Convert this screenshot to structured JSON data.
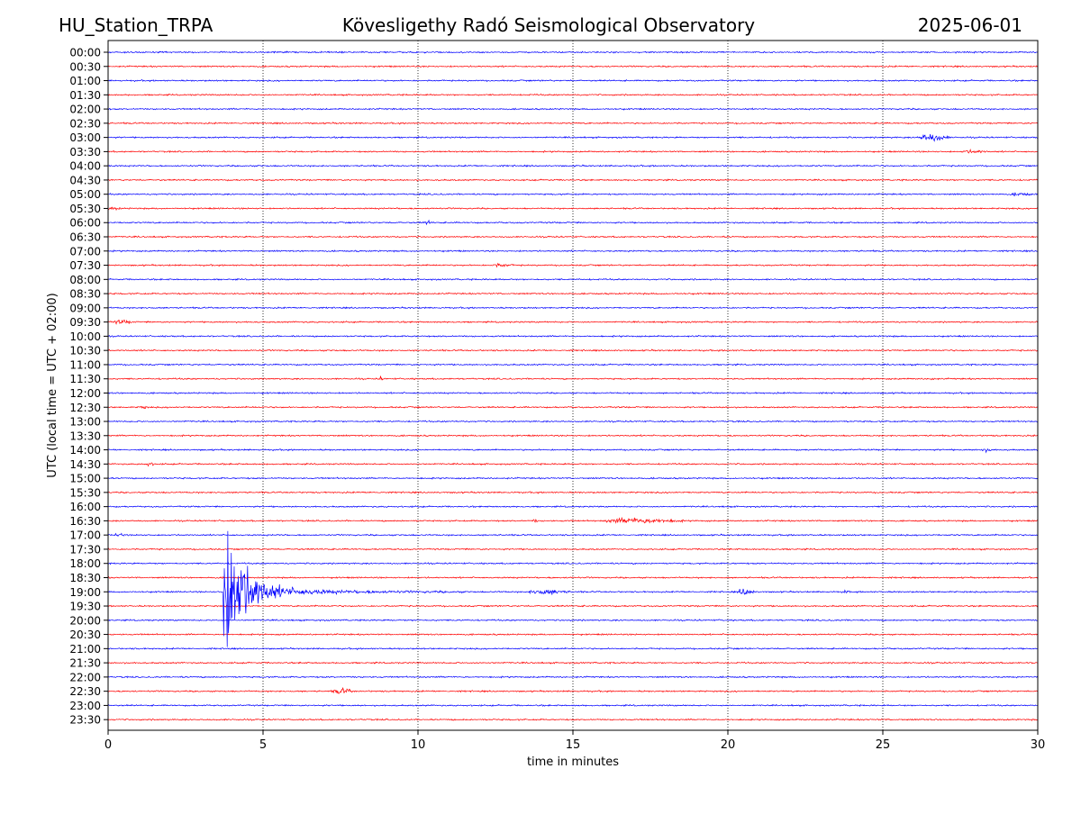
{
  "header": {
    "station": "HU_Station_TRPA",
    "observatory": "Kövesligethy Radó Seismological Observatory",
    "date": "2025-06-01"
  },
  "chart_data": {
    "type": "line",
    "title": "Kövesligethy Radó Seismological Observatory",
    "xlabel": "time in minutes",
    "ylabel": "UTC (local time = UTC + 02:00)",
    "xlim": [
      0,
      30
    ],
    "x_ticks": [
      0,
      5,
      10,
      15,
      20,
      25,
      30
    ],
    "x_tick_labels": [
      "0",
      "5",
      "10",
      "15",
      "20",
      "25",
      "30"
    ],
    "grid": "vertical dotted at x ticks",
    "trace_colors": [
      "#0000ff",
      "#ff0000"
    ],
    "rows": [
      "00:00",
      "00:30",
      "01:00",
      "01:30",
      "02:00",
      "02:30",
      "03:00",
      "03:30",
      "04:00",
      "04:30",
      "05:00",
      "05:30",
      "06:00",
      "06:30",
      "07:00",
      "07:30",
      "08:00",
      "08:30",
      "09:00",
      "09:30",
      "10:00",
      "10:30",
      "11:00",
      "11:30",
      "12:00",
      "12:30",
      "13:00",
      "13:30",
      "14:00",
      "14:30",
      "15:00",
      "15:30",
      "16:00",
      "16:30",
      "17:00",
      "17:30",
      "18:00",
      "18:30",
      "19:00",
      "19:30",
      "20:00",
      "20:30",
      "21:00",
      "21:30",
      "22:00",
      "22:30",
      "23:00",
      "23:30"
    ],
    "events": [
      {
        "row": "03:00",
        "start_min": 26.1,
        "end_min": 27.4,
        "peak": 9
      },
      {
        "row": "03:30",
        "start_min": 27.5,
        "end_min": 28.6,
        "peak": 3
      },
      {
        "row": "05:00",
        "start_min": 29.1,
        "end_min": 30.0,
        "peak": 3
      },
      {
        "row": "05:30",
        "start_min": 0.0,
        "end_min": 0.5,
        "peak": 3
      },
      {
        "row": "06:00",
        "start_min": 10.2,
        "end_min": 10.5,
        "peak": 4
      },
      {
        "row": "07:30",
        "start_min": 12.3,
        "end_min": 13.3,
        "peak": 3
      },
      {
        "row": "09:30",
        "start_min": 0.1,
        "end_min": 1.0,
        "peak": 4
      },
      {
        "row": "11:30",
        "start_min": 8.75,
        "end_min": 8.9,
        "peak": 5
      },
      {
        "row": "11:30",
        "start_min": 26.5,
        "end_min": 26.7,
        "peak": 5
      },
      {
        "row": "12:30",
        "start_min": 1.0,
        "end_min": 1.3,
        "peak": 4
      },
      {
        "row": "14:00",
        "start_min": 28.1,
        "end_min": 28.7,
        "peak": 3
      },
      {
        "row": "14:30",
        "start_min": 1.2,
        "end_min": 1.6,
        "peak": 3
      },
      {
        "row": "16:30",
        "start_min": 15.9,
        "end_min": 19.2,
        "peak": 6
      },
      {
        "row": "16:30",
        "start_min": 13.7,
        "end_min": 13.9,
        "peak": 4
      },
      {
        "row": "17:00",
        "start_min": 0.2,
        "end_min": 0.6,
        "peak": 4
      },
      {
        "row": "19:00",
        "start_min": 3.7,
        "end_min": 11.5,
        "peak": 150
      },
      {
        "row": "19:00",
        "start_min": 13.5,
        "end_min": 15.2,
        "peak": 6
      },
      {
        "row": "19:00",
        "start_min": 20.3,
        "end_min": 21.0,
        "peak": 8
      },
      {
        "row": "19:00",
        "start_min": 23.75,
        "end_min": 23.9,
        "peak": 8
      },
      {
        "row": "22:30",
        "start_min": 7.2,
        "end_min": 8.1,
        "peak": 6
      }
    ]
  }
}
